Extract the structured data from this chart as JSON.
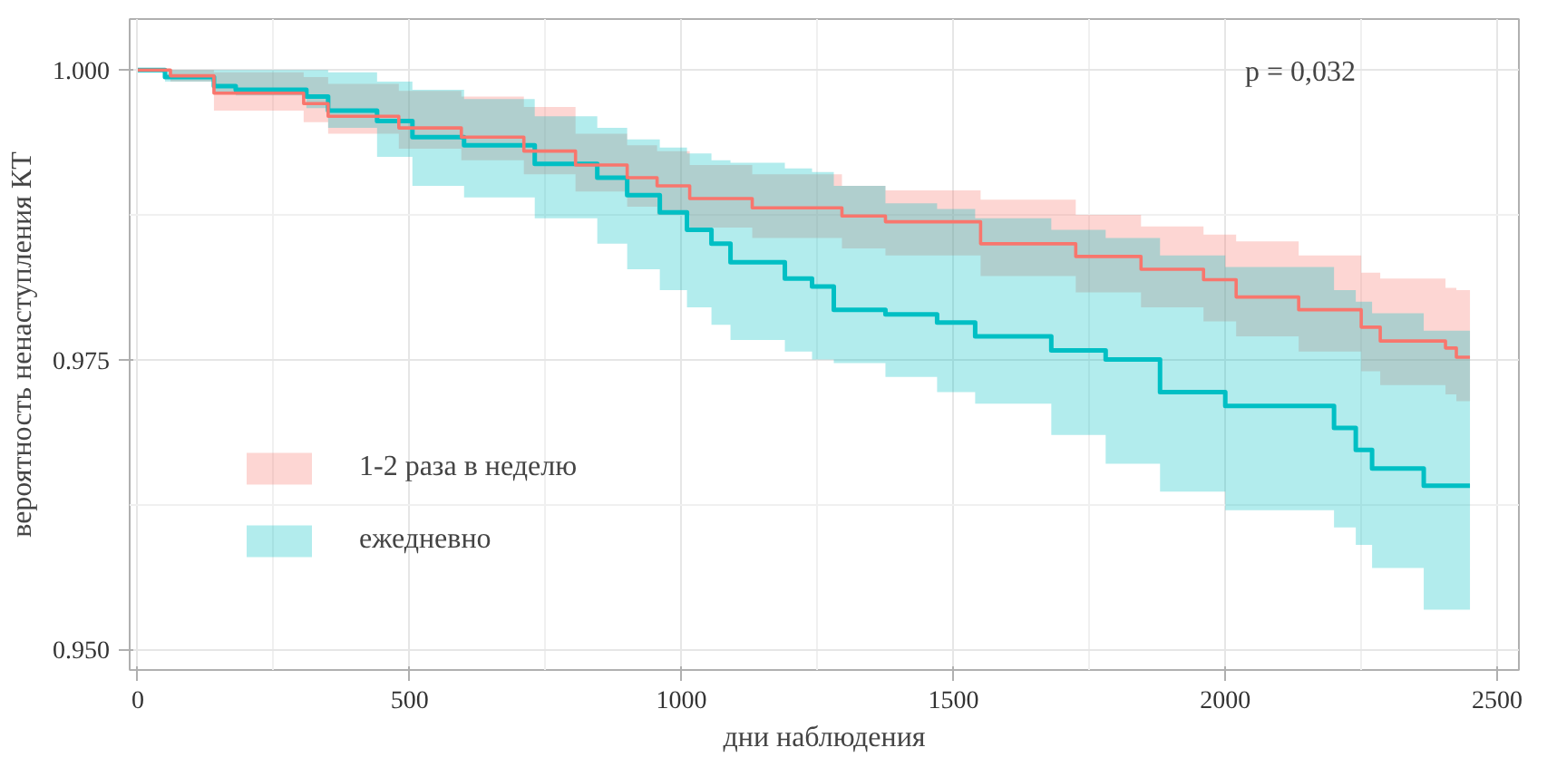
{
  "chart_data": {
    "type": "step",
    "xlabel": "дни наблюдения",
    "ylabel": "вероятность ненаступления КТ",
    "xlim": [
      -15,
      2540
    ],
    "ylim": [
      0.9482,
      1.0044
    ],
    "xticks": [
      0,
      500,
      1000,
      1500,
      2000,
      2500
    ],
    "yticks": [
      {
        "value": 0.95,
        "label": "0.950"
      },
      {
        "value": 0.975,
        "label": "0.975"
      },
      {
        "value": 1.0,
        "label": "1.000"
      }
    ],
    "grid": true,
    "legend": "bottom left",
    "line_style": "solid",
    "annotations": [
      "p = 0,032"
    ],
    "series": [
      {
        "name": "1-2 раза в неделю",
        "color": "#f8766d",
        "x": [
          0,
          60,
          140,
          305,
          350,
          480,
          595,
          710,
          805,
          900,
          955,
          1015,
          1130,
          1295,
          1375,
          1550,
          1725,
          1845,
          1960,
          2020,
          2135,
          2250,
          2285,
          2405,
          2425,
          2450
        ],
        "values": [
          1.0,
          0.9995,
          0.998,
          0.9971,
          0.996,
          0.995,
          0.9942,
          0.993,
          0.9918,
          0.9907,
          0.99,
          0.9889,
          0.9881,
          0.9874,
          0.9869,
          0.985,
          0.9839,
          0.9828,
          0.9819,
          0.9804,
          0.9793,
          0.9778,
          0.9766,
          0.976,
          0.9752,
          0.9752
        ],
        "upper": [
          1.0,
          1.0,
          0.9998,
          0.9994,
          0.9988,
          0.9982,
          0.9977,
          0.9968,
          0.9945,
          0.9935,
          0.993,
          0.9918,
          0.991,
          0.99,
          0.9896,
          0.9888,
          0.9875,
          0.9865,
          0.9858,
          0.9852,
          0.984,
          0.9825,
          0.982,
          0.9812,
          0.981,
          0.981
        ],
        "lower": [
          1.0,
          0.999,
          0.9965,
          0.9955,
          0.9945,
          0.9932,
          0.9922,
          0.991,
          0.9895,
          0.9882,
          0.9875,
          0.9864,
          0.9855,
          0.9846,
          0.984,
          0.9822,
          0.9808,
          0.9795,
          0.9783,
          0.977,
          0.9757,
          0.974,
          0.9728,
          0.972,
          0.9714,
          0.9714
        ]
      },
      {
        "name": "ежедневно",
        "color": "#00bfc4",
        "x": [
          0,
          50,
          140,
          180,
          310,
          350,
          440,
          505,
          600,
          730,
          845,
          900,
          960,
          1010,
          1055,
          1090,
          1190,
          1240,
          1280,
          1375,
          1470,
          1540,
          1680,
          1780,
          1880,
          2000,
          2200,
          2240,
          2270,
          2365,
          2450
        ],
        "values": [
          1.0,
          0.9994,
          0.9986,
          0.9983,
          0.9977,
          0.9965,
          0.9956,
          0.9942,
          0.9935,
          0.9919,
          0.9907,
          0.9892,
          0.9877,
          0.9862,
          0.985,
          0.9834,
          0.982,
          0.9813,
          0.9793,
          0.9789,
          0.9782,
          0.977,
          0.9758,
          0.975,
          0.9722,
          0.971,
          0.9691,
          0.9672,
          0.9656,
          0.9641,
          0.9641
        ],
        "upper": [
          1.0,
          1.0,
          1.0,
          1.0,
          1.0,
          0.9998,
          0.999,
          0.9983,
          0.9975,
          0.996,
          0.995,
          0.994,
          0.9933,
          0.9928,
          0.9922,
          0.992,
          0.9915,
          0.9912,
          0.99,
          0.9885,
          0.988,
          0.9872,
          0.9862,
          0.9855,
          0.984,
          0.983,
          0.981,
          0.98,
          0.979,
          0.9775,
          0.9775
        ],
        "lower": [
          1.0,
          0.999,
          0.998,
          0.9978,
          0.9967,
          0.995,
          0.9925,
          0.99,
          0.989,
          0.9872,
          0.985,
          0.9828,
          0.981,
          0.9795,
          0.978,
          0.9767,
          0.9757,
          0.975,
          0.9747,
          0.9735,
          0.9722,
          0.9712,
          0.9685,
          0.966,
          0.9636,
          0.962,
          0.9605,
          0.959,
          0.957,
          0.9534,
          0.9534
        ]
      }
    ]
  }
}
